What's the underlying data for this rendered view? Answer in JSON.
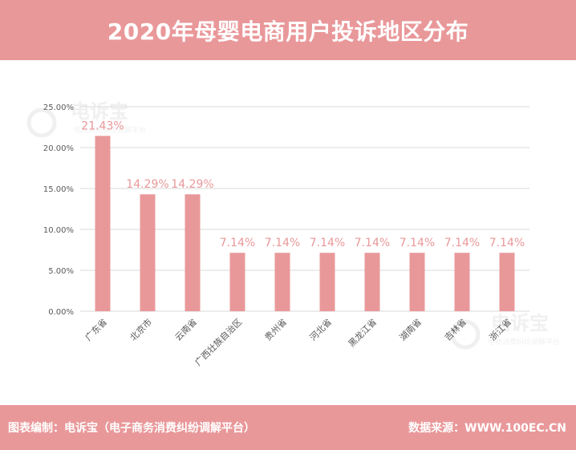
{
  "header": {
    "title": "2020年母婴电商用户投诉地区分布"
  },
  "footer": {
    "source_left": "图表编制：电诉宝（电子商务消费纠纷调解平台）",
    "source_right": "数据来源：WWW.100EC.CN"
  },
  "watermark": {
    "logo_text": "电诉宝",
    "sub_text": "电商消费纠纷调解平台"
  },
  "colors": {
    "header_bg": "#e9989a",
    "bar": "#e9989a",
    "label": "#e9989a",
    "grid": "#d9d9d9",
    "axis_text": "#595959"
  },
  "chart_data": {
    "type": "bar",
    "title": "2020年母婴电商用户投诉地区分布",
    "xlabel": "",
    "ylabel": "",
    "categories": [
      "广东省",
      "北京市",
      "云南省",
      "广西壮族自治区",
      "贵州省",
      "河北省",
      "黑龙江省",
      "湖南省",
      "吉林省",
      "浙江省"
    ],
    "values": [
      21.43,
      14.29,
      14.29,
      7.14,
      7.14,
      7.14,
      7.14,
      7.14,
      7.14,
      7.14
    ],
    "value_labels": [
      "21.43%",
      "14.29%",
      "14.29%",
      "7.14%",
      "7.14%",
      "7.14%",
      "7.14%",
      "7.14%",
      "7.14%",
      "7.14%"
    ],
    "yticks": [
      "0.00%",
      "5.00%",
      "10.00%",
      "15.00%",
      "20.00%",
      "25.00%"
    ],
    "ylim": [
      0,
      25
    ],
    "grid": true,
    "legend": "none"
  }
}
